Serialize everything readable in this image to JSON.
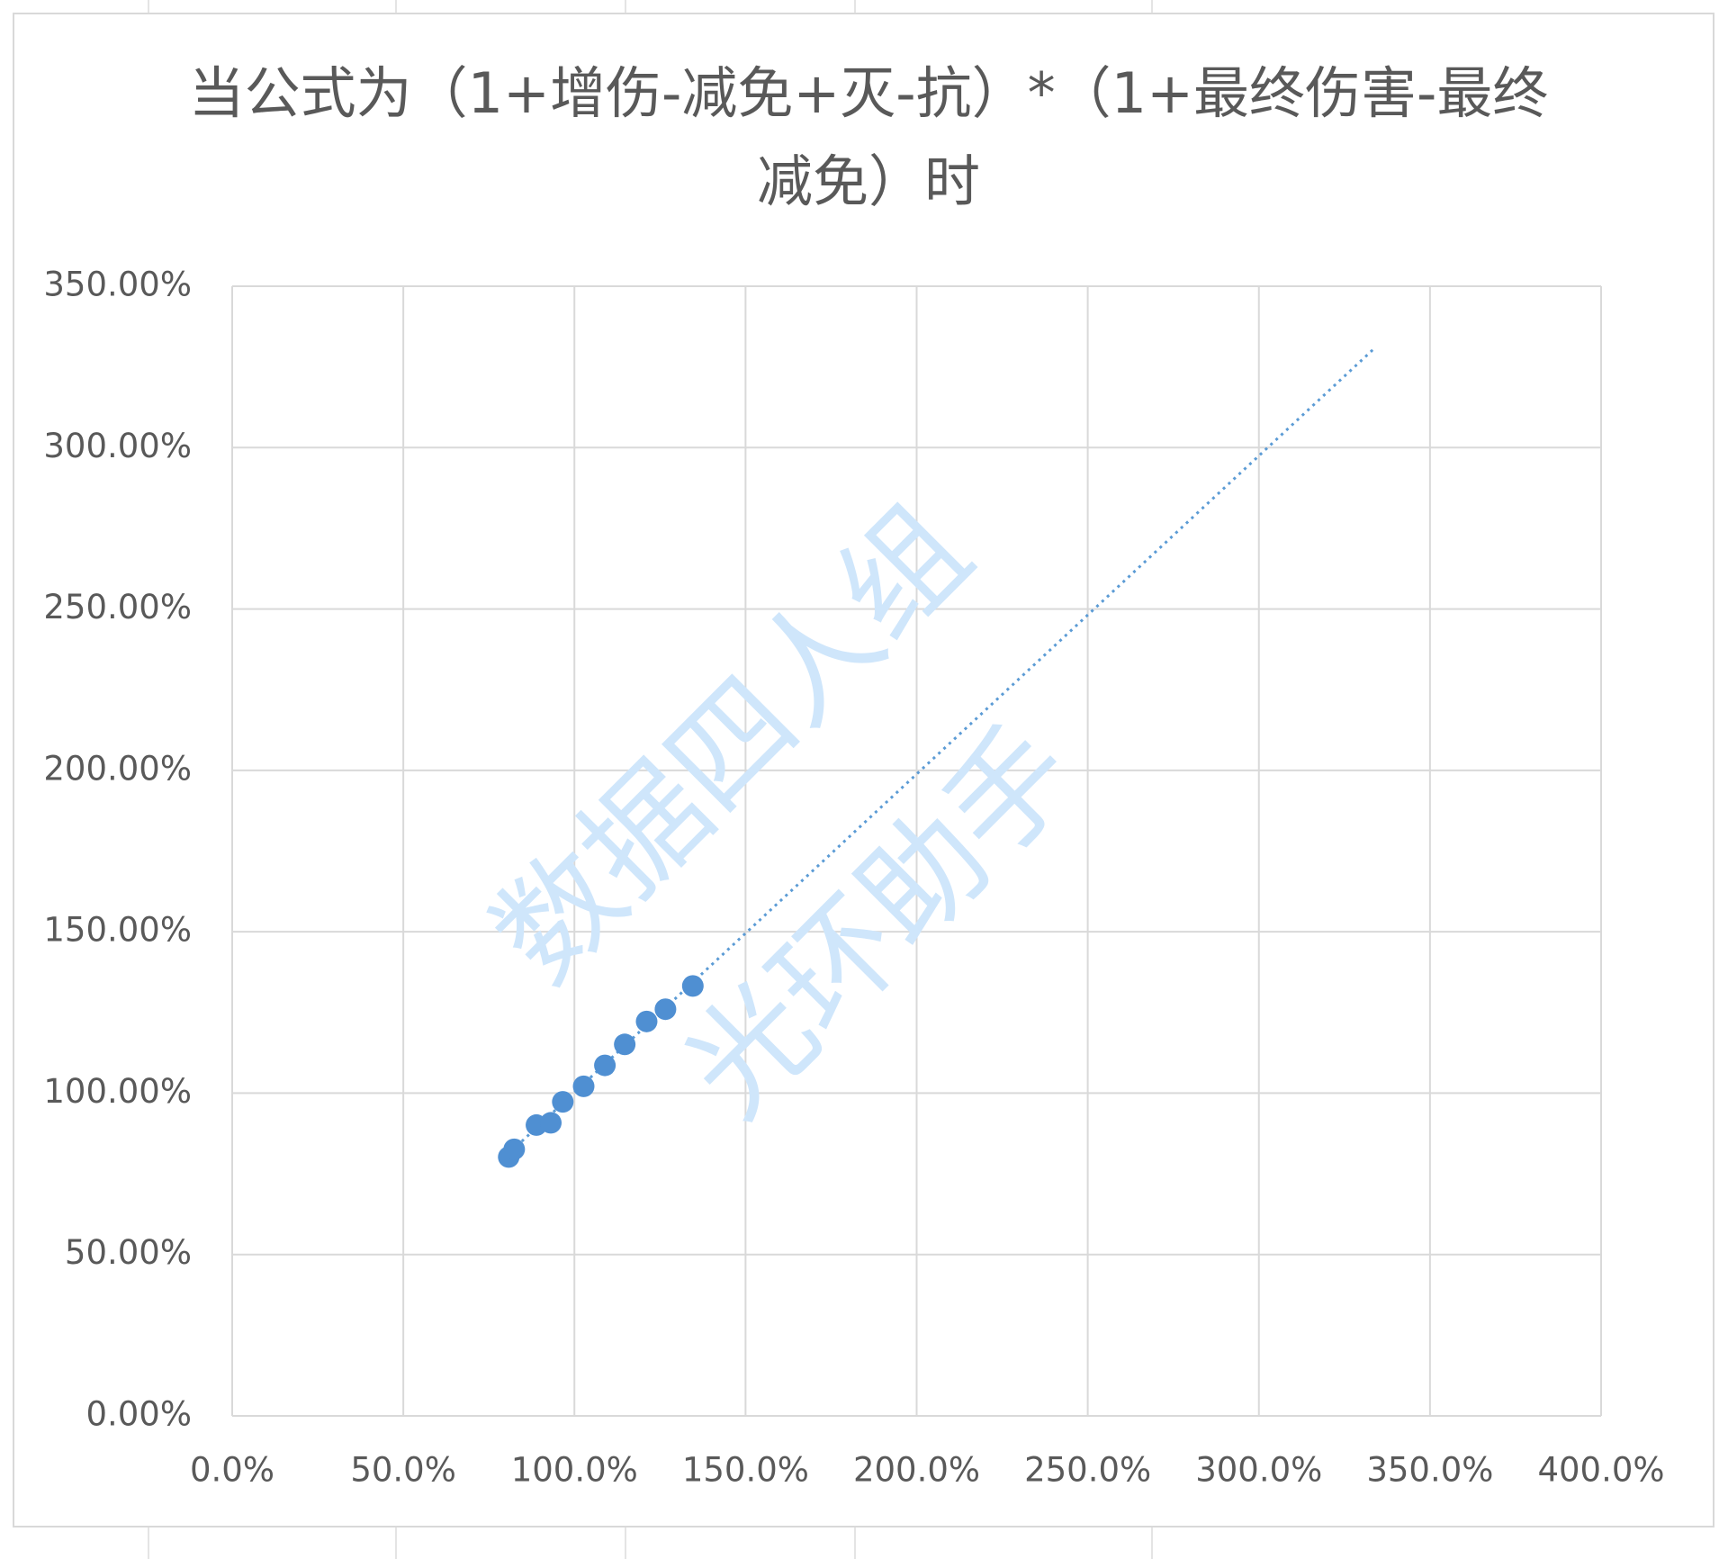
{
  "chart_data": {
    "type": "scatter",
    "title": "当公式为（1+增伤-减免+灭-抗）*（1+最终伤害-最终减免）时",
    "watermark": [
      "数据四人组",
      "光环助手"
    ],
    "x": [
      80.8,
      82.4,
      88.9,
      93.1,
      96.6,
      102.7,
      108.9,
      114.7,
      121.1,
      126.6,
      134.6
    ],
    "series": [
      {
        "color": "#4f8fd2",
        "values": [
          80.2,
          82.6,
          90.1,
          90.8,
          97.3,
          102.1,
          108.6,
          115.1,
          122.2,
          126.0,
          133.2
        ]
      }
    ],
    "trendline": {
      "color": "#5b9bd5",
      "x": [
        80.0,
        334.0
      ],
      "y": [
        80.5,
        331.0
      ]
    },
    "xlim": [
      0,
      400
    ],
    "xticks": [
      {
        "value": 0,
        "label": "0.0%"
      },
      {
        "value": 50,
        "label": "50.0%"
      },
      {
        "value": 100,
        "label": "100.0%"
      },
      {
        "value": 150,
        "label": "150.0%"
      },
      {
        "value": 200,
        "label": "200.0%"
      },
      {
        "value": 250,
        "label": "250.0%"
      },
      {
        "value": 300,
        "label": "300.0%"
      },
      {
        "value": 350,
        "label": "350.0%"
      },
      {
        "value": 400,
        "label": "400.0%"
      }
    ],
    "ylim": [
      0,
      350
    ],
    "yticks": [
      {
        "value": 0,
        "label": "0.00%"
      },
      {
        "value": 50,
        "label": "50.00%"
      },
      {
        "value": 100,
        "label": "100.00%"
      },
      {
        "value": 150,
        "label": "150.00%"
      },
      {
        "value": 200,
        "label": "200.00%"
      },
      {
        "value": 250,
        "label": "250.00%"
      },
      {
        "value": 300,
        "label": "300.00%"
      },
      {
        "value": 350,
        "label": "350.00%"
      }
    ],
    "grid": true
  }
}
